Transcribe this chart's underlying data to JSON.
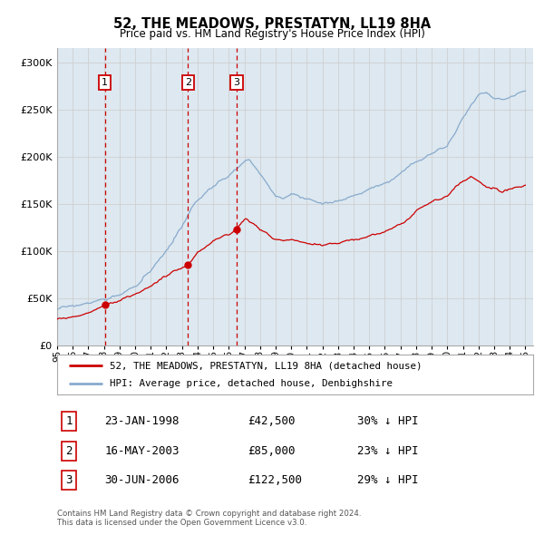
{
  "title": "52, THE MEADOWS, PRESTATYN, LL19 8HA",
  "subtitle": "Price paid vs. HM Land Registry's House Price Index (HPI)",
  "yticks": [
    0,
    50000,
    100000,
    150000,
    200000,
    250000,
    300000
  ],
  "ylim": [
    0,
    315000
  ],
  "xlim_start": 1995.0,
  "xlim_end": 2025.5,
  "purchases": [
    {
      "num": 1,
      "date_str": "23-JAN-1998",
      "year": 1998.06,
      "price": 42500,
      "hpi_pct": "30%"
    },
    {
      "num": 2,
      "date_str": "16-MAY-2003",
      "year": 2003.38,
      "price": 85000,
      "hpi_pct": "23%"
    },
    {
      "num": 3,
      "date_str": "30-JUN-2006",
      "year": 2006.5,
      "price": 122500,
      "hpi_pct": "29%"
    }
  ],
  "line_color_red": "#cc0000",
  "line_color_blue": "#88aacc",
  "vline_color": "#cc0000",
  "marker_color": "#cc0000",
  "grid_color": "#cccccc",
  "bg_color": "#dde8f0",
  "plot_bg": "#dde8f0",
  "legend_label_red": "52, THE MEADOWS, PRESTATYN, LL19 8HA (detached house)",
  "legend_label_blue": "HPI: Average price, detached house, Denbighshire",
  "footer1": "Contains HM Land Registry data © Crown copyright and database right 2024.",
  "footer2": "This data is licensed under the Open Government Licence v3.0.",
  "xtick_years": [
    1995,
    1996,
    1997,
    1998,
    1999,
    2000,
    2001,
    2002,
    2003,
    2004,
    2005,
    2006,
    2007,
    2008,
    2009,
    2010,
    2011,
    2012,
    2013,
    2014,
    2015,
    2016,
    2017,
    2018,
    2019,
    2020,
    2021,
    2022,
    2023,
    2024,
    2025
  ],
  "hpi_keypoints": [
    [
      1995.0,
      38000
    ],
    [
      1997.0,
      45000
    ],
    [
      1998.0,
      48000
    ],
    [
      1999.0,
      53000
    ],
    [
      2000.0,
      63000
    ],
    [
      2001.0,
      78000
    ],
    [
      2002.0,
      100000
    ],
    [
      2003.0,
      125000
    ],
    [
      2004.0,
      155000
    ],
    [
      2005.0,
      168000
    ],
    [
      2006.0,
      180000
    ],
    [
      2006.5,
      188000
    ],
    [
      2007.0,
      195000
    ],
    [
      2007.3,
      197000
    ],
    [
      2007.8,
      185000
    ],
    [
      2008.5,
      170000
    ],
    [
      2009.0,
      158000
    ],
    [
      2009.5,
      155000
    ],
    [
      2010.0,
      162000
    ],
    [
      2010.5,
      158000
    ],
    [
      2011.0,
      155000
    ],
    [
      2011.5,
      152000
    ],
    [
      2012.0,
      150000
    ],
    [
      2012.5,
      151000
    ],
    [
      2013.0,
      153000
    ],
    [
      2013.5,
      155000
    ],
    [
      2014.0,
      158000
    ],
    [
      2015.0,
      165000
    ],
    [
      2016.0,
      172000
    ],
    [
      2017.0,
      182000
    ],
    [
      2018.0,
      195000
    ],
    [
      2018.5,
      200000
    ],
    [
      2019.0,
      205000
    ],
    [
      2019.5,
      208000
    ],
    [
      2020.0,
      212000
    ],
    [
      2020.5,
      225000
    ],
    [
      2021.0,
      240000
    ],
    [
      2021.5,
      255000
    ],
    [
      2022.0,
      265000
    ],
    [
      2022.5,
      268000
    ],
    [
      2023.0,
      262000
    ],
    [
      2023.5,
      260000
    ],
    [
      2024.0,
      263000
    ],
    [
      2024.5,
      268000
    ],
    [
      2025.0,
      270000
    ]
  ],
  "prop_keypoints": [
    [
      1995.0,
      28000
    ],
    [
      1996.0,
      30000
    ],
    [
      1997.0,
      33000
    ],
    [
      1998.06,
      42500
    ],
    [
      1999.0,
      47000
    ],
    [
      2000.0,
      54000
    ],
    [
      2001.0,
      63000
    ],
    [
      2002.0,
      73000
    ],
    [
      2003.38,
      85000
    ],
    [
      2004.0,
      98000
    ],
    [
      2005.0,
      110000
    ],
    [
      2006.0,
      118000
    ],
    [
      2006.5,
      122500
    ],
    [
      2006.8,
      130000
    ],
    [
      2007.1,
      135000
    ],
    [
      2007.5,
      130000
    ],
    [
      2008.0,
      122000
    ],
    [
      2008.5,
      118000
    ],
    [
      2009.0,
      112000
    ],
    [
      2009.5,
      110000
    ],
    [
      2010.0,
      112000
    ],
    [
      2010.5,
      109000
    ],
    [
      2011.0,
      107000
    ],
    [
      2011.5,
      108000
    ],
    [
      2012.0,
      106000
    ],
    [
      2012.5,
      107000
    ],
    [
      2013.0,
      108000
    ],
    [
      2013.5,
      110000
    ],
    [
      2014.0,
      112000
    ],
    [
      2015.0,
      115000
    ],
    [
      2016.0,
      120000
    ],
    [
      2017.0,
      128000
    ],
    [
      2018.0,
      140000
    ],
    [
      2018.5,
      148000
    ],
    [
      2019.0,
      152000
    ],
    [
      2019.5,
      155000
    ],
    [
      2020.0,
      158000
    ],
    [
      2020.5,
      168000
    ],
    [
      2021.0,
      175000
    ],
    [
      2021.5,
      178000
    ],
    [
      2022.0,
      173000
    ],
    [
      2022.5,
      168000
    ],
    [
      2023.0,
      165000
    ],
    [
      2023.5,
      163000
    ],
    [
      2024.0,
      165000
    ],
    [
      2024.5,
      168000
    ],
    [
      2025.0,
      170000
    ]
  ]
}
